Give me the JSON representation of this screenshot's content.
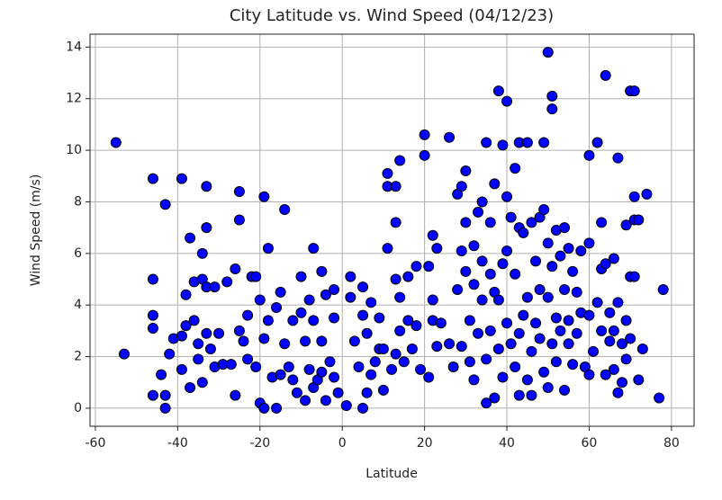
{
  "chart_data": {
    "type": "scatter",
    "title": "City Latitude vs. Wind Speed (04/12/23)",
    "x_label": "Latitude",
    "y_label": "Wind Speed (m/s)",
    "color": "#0000ff",
    "edge_color": "#000000",
    "grid": true,
    "xlim": [
      -61.3,
      85.5
    ],
    "ylim": [
      -0.7,
      14.5
    ],
    "xticks": [
      -60,
      -40,
      -20,
      0,
      20,
      40,
      60,
      80
    ],
    "yticks": [
      0,
      2,
      4,
      6,
      8,
      10,
      12,
      14
    ],
    "x": [
      -55,
      -53,
      -46,
      -46,
      -46,
      -46,
      -46,
      -44,
      -43,
      -43,
      -43,
      -42,
      -41,
      -39,
      -39,
      -39,
      -38,
      -38,
      -37,
      -37,
      -36,
      -36,
      -35,
      -35,
      -34,
      -34,
      -34,
      -33,
      -33,
      -33,
      -33,
      -32,
      -31,
      -31,
      -30,
      -29,
      -28,
      -27,
      -26,
      -26,
      -25,
      -25,
      -25,
      -24,
      -23,
      -23,
      -22,
      -21,
      -21,
      -20,
      -20,
      -19,
      -19,
      -19,
      -18,
      -18,
      -17,
      -16,
      -16,
      -15,
      -15,
      -14,
      -14,
      -13,
      -12,
      -12,
      -11,
      -10,
      -10,
      -9,
      -9,
      -8,
      -8,
      -7,
      -7,
      -7,
      -6,
      -5,
      -5,
      -5,
      -4,
      -4,
      -3,
      -2,
      -2,
      -2,
      -1,
      1,
      2,
      2,
      3,
      4,
      5,
      5,
      5,
      6,
      6,
      7,
      7,
      8,
      9,
      9,
      10,
      10,
      11,
      11,
      11,
      12,
      13,
      13,
      13,
      13,
      14,
      14,
      14,
      15,
      16,
      16,
      17,
      18,
      18,
      19,
      20,
      20,
      21,
      21,
      22,
      22,
      22,
      23,
      23,
      24,
      26,
      26,
      27,
      28,
      28,
      29,
      29,
      29,
      30,
      30,
      30,
      31,
      31,
      32,
      32,
      32,
      33,
      33,
      34,
      34,
      34,
      35,
      35,
      35,
      36,
      36,
      36,
      37,
      37,
      37,
      38,
      38,
      38,
      39,
      39,
      39,
      40,
      40,
      40,
      40,
      41,
      41,
      42,
      42,
      42,
      43,
      43,
      43,
      43,
      44,
      44,
      45,
      45,
      45,
      46,
      46,
      46,
      47,
      47,
      48,
      48,
      48,
      49,
      49,
      49,
      50,
      50,
      50,
      50,
      51,
      51,
      51,
      51,
      52,
      52,
      52,
      53,
      53,
      54,
      54,
      54,
      55,
      55,
      55,
      56,
      56,
      57,
      57,
      58,
      58,
      59,
      60,
      60,
      60,
      60,
      61,
      62,
      62,
      63,
      63,
      63,
      64,
      64,
      64,
      65,
      65,
      66,
      66,
      66,
      67,
      67,
      67,
      68,
      68,
      69,
      69,
      69,
      70,
      70,
      70,
      71,
      71,
      71,
      71,
      72,
      72,
      73,
      74,
      77,
      78
    ],
    "y": [
      10.3,
      2.1,
      8.9,
      5,
      3.6,
      3.1,
      0.5,
      1.3,
      7.9,
      0.5,
      0,
      2.1,
      2.7,
      8.9,
      2.8,
      1.5,
      4.4,
      3.2,
      6.6,
      0.8,
      4.9,
      3.4,
      2.5,
      1.9,
      6,
      5,
      1,
      8.6,
      7,
      4.7,
      2.9,
      2.3,
      1.6,
      4.7,
      2.9,
      1.7,
      4.9,
      1.7,
      5.4,
      0.5,
      8.4,
      7.3,
      3,
      2.6,
      1.9,
      3.6,
      5.1,
      1.6,
      5.1,
      0.2,
      4.2,
      8.2,
      0,
      2.7,
      6.2,
      3.4,
      1.2,
      3.9,
      0,
      1.3,
      4.5,
      7.7,
      2.5,
      1.6,
      3.4,
      1.1,
      0.6,
      5.1,
      3.7,
      2.6,
      0.3,
      4.2,
      1.5,
      6.2,
      3.4,
      0.8,
      1.1,
      5.3,
      2.6,
      1.4,
      4.4,
      0.3,
      1.8,
      4.6,
      3.5,
      1.2,
      0.6,
      0.1,
      5.1,
      4.3,
      2.6,
      1.6,
      4.7,
      0,
      3.6,
      2.9,
      0.6,
      4.1,
      1.3,
      1.8,
      3.5,
      2.3,
      2.3,
      0.7,
      8.6,
      9.1,
      6.2,
      1.5,
      8.6,
      7.2,
      5,
      2.1,
      9.6,
      4.3,
      3,
      1.8,
      5.1,
      3.4,
      2.3,
      5.5,
      3.2,
      1.5,
      10.6,
      9.8,
      5.5,
      1.2,
      6.7,
      4.2,
      3.4,
      2.4,
      6.2,
      3.3,
      10.5,
      2.5,
      1.6,
      8.3,
      4.6,
      8.6,
      6.1,
      2.4,
      9.2,
      7.2,
      5.3,
      3.4,
      1.8,
      6.3,
      4.8,
      1.1,
      7.6,
      2.9,
      8,
      5.7,
      4.2,
      10.3,
      0.2,
      1.9,
      7.2,
      5.2,
      3,
      8.7,
      0.4,
      4.5,
      12.3,
      2.3,
      4.2,
      10.2,
      5.6,
      1.2,
      11.9,
      8.2,
      3.3,
      6.1,
      7.4,
      2.5,
      9.3,
      5.2,
      1.6,
      10.3,
      7,
      2.9,
      0.5,
      3.6,
      6.8,
      10.3,
      4.3,
      1.1,
      7.2,
      2.2,
      0.5,
      5.7,
      3.3,
      7.4,
      4.6,
      2.7,
      10.3,
      7.7,
      1.4,
      13.8,
      6.4,
      4.3,
      0.8,
      12.1,
      11.6,
      5.5,
      2.5,
      6.9,
      3.5,
      1.8,
      5.9,
      3,
      7,
      4.6,
      0.7,
      6.2,
      3.4,
      2.5,
      5.3,
      1.7,
      4.5,
      2.9,
      6.1,
      3.7,
      1.6,
      9.8,
      6.4,
      3.6,
      1.3,
      2.2,
      10.3,
      4.1,
      7.2,
      5.4,
      3,
      12.9,
      5.6,
      1.3,
      3.7,
      2.6,
      5.8,
      3,
      1.5,
      9.7,
      4.1,
      0.6,
      2.5,
      1,
      7.1,
      3.4,
      1.9,
      12.3,
      5.1,
      2.7,
      12.3,
      8.2,
      5.1,
      7.3,
      1.1,
      7.3,
      2.3,
      8.3,
      0.4,
      4.6
    ]
  }
}
